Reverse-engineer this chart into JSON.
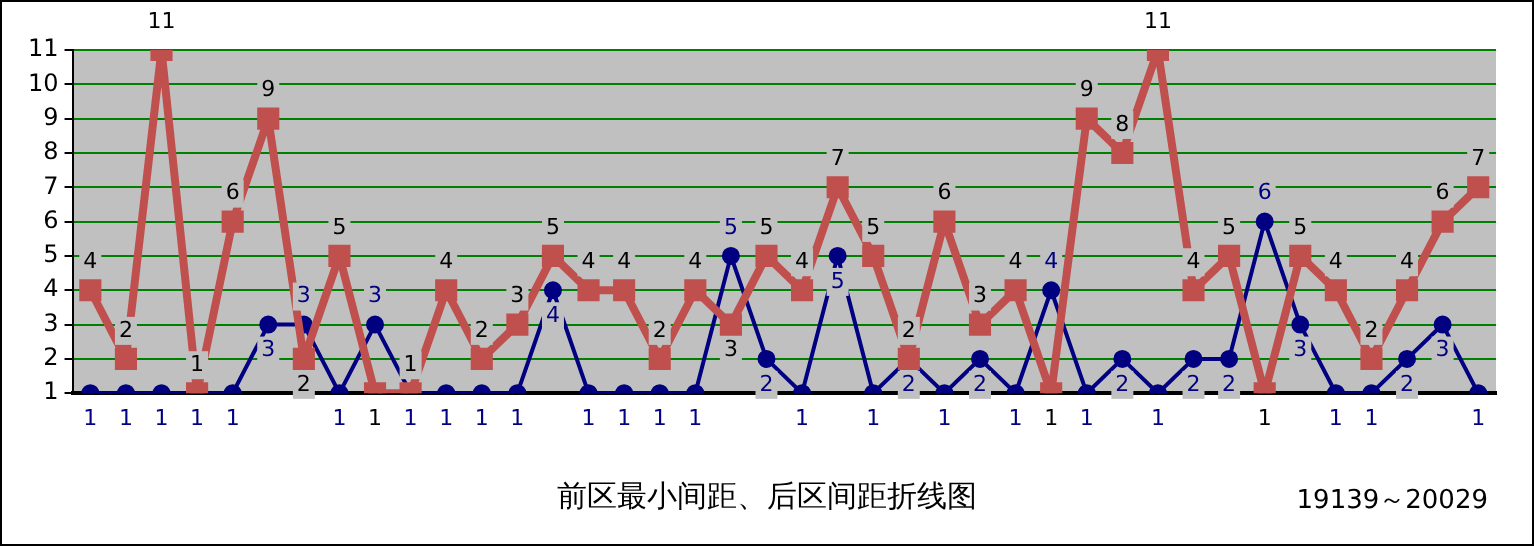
{
  "chart_data": {
    "type": "line",
    "title": "前区最小间距、后区间距折线图",
    "annotations": [
      "19139～20029"
    ],
    "categories": [
      null,
      null,
      null,
      null,
      null,
      null,
      null,
      null,
      null,
      null,
      null,
      null,
      null,
      null,
      null,
      null,
      null,
      null,
      null,
      null,
      null,
      null,
      null,
      null,
      null,
      null,
      null,
      null,
      null,
      null,
      null,
      null,
      null,
      null,
      null,
      null,
      null,
      null,
      null,
      null
    ],
    "series": [
      {
        "color": "#c0504d",
        "marker": "square",
        "values": [
          4,
          2,
          11,
          1,
          6,
          9,
          2,
          5,
          1,
          1,
          4,
          2,
          3,
          5,
          4,
          4,
          2,
          4,
          3,
          5,
          4,
          7,
          5,
          2,
          6,
          3,
          4,
          1,
          9,
          8,
          11,
          4,
          5,
          1,
          5,
          4,
          2,
          4,
          6,
          7
        ]
      },
      {
        "color": "#000080",
        "marker": "circle",
        "values": [
          1,
          1,
          1,
          1,
          1,
          3,
          3,
          1,
          3,
          1,
          1,
          1,
          1,
          4,
          1,
          1,
          1,
          1,
          5,
          2,
          1,
          5,
          1,
          2,
          1,
          2,
          1,
          4,
          1,
          2,
          1,
          2,
          2,
          6,
          3,
          1,
          1,
          2,
          3,
          1
        ]
      }
    ],
    "ylim": [
      1,
      11
    ],
    "yticks": [
      1,
      2,
      3,
      4,
      5,
      6,
      7,
      8,
      9,
      10,
      11
    ],
    "grid": "y",
    "legend": false,
    "data_labels": true,
    "line_style": "solid"
  }
}
